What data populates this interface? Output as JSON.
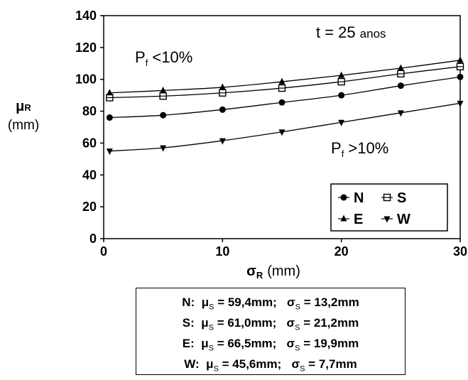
{
  "chart_data": {
    "type": "line",
    "title": "",
    "xlabel": {
      "symbol": "σ",
      "subscript": "R",
      "unit": "(mm)"
    },
    "ylabel": {
      "symbol": "μ",
      "subscript": "R",
      "unit": "(mm)"
    },
    "xlim": [
      0,
      30
    ],
    "ylim": [
      0,
      140
    ],
    "xticks": [
      0,
      10,
      20,
      30
    ],
    "yticks": [
      0,
      20,
      40,
      60,
      80,
      100,
      120,
      140
    ],
    "grid": false,
    "legend_position": "bottom-right",
    "x": [
      0.5,
      5,
      10,
      15,
      20,
      25,
      30
    ],
    "series": [
      {
        "name": "N",
        "marker": "circle",
        "values": [
          76,
          77.5,
          81,
          85.5,
          90,
          96,
          101.5
        ]
      },
      {
        "name": "S",
        "marker": "square-open",
        "values": [
          88.5,
          89.5,
          91.5,
          94.5,
          98.5,
          103.5,
          108
        ]
      },
      {
        "name": "E",
        "marker": "triangle-up",
        "values": [
          91.5,
          93,
          95,
          98.5,
          102.5,
          107,
          112
        ]
      },
      {
        "name": "W",
        "marker": "triangle-down",
        "values": [
          55,
          57,
          61.5,
          67,
          73,
          79,
          85
        ]
      }
    ],
    "annotations": [
      {
        "main": "t = 25",
        "small": "anos",
        "pos": "top-right"
      },
      {
        "main": "P",
        "sub": "f",
        "rest": " <10%",
        "pos": "upper-left"
      },
      {
        "main": "P",
        "sub": "f",
        "rest": " >10%",
        "pos": "middle-right"
      }
    ]
  },
  "params_table": [
    {
      "label": "N:",
      "mu_value": "= 59,4mm;",
      "sigma_value": "= 13,2mm"
    },
    {
      "label": "S:",
      "mu_value": "= 61,0mm;",
      "sigma_value": "= 21,2mm"
    },
    {
      "label": "E:",
      "mu_value": "= 66,5mm;",
      "sigma_value": "= 19,9mm"
    },
    {
      "label": "W:",
      "mu_value": "= 45,6mm;",
      "sigma_value": "= 7,7mm"
    }
  ],
  "params_symbols": {
    "mu": "μ",
    "sigma": "σ",
    "subscript": "S"
  }
}
